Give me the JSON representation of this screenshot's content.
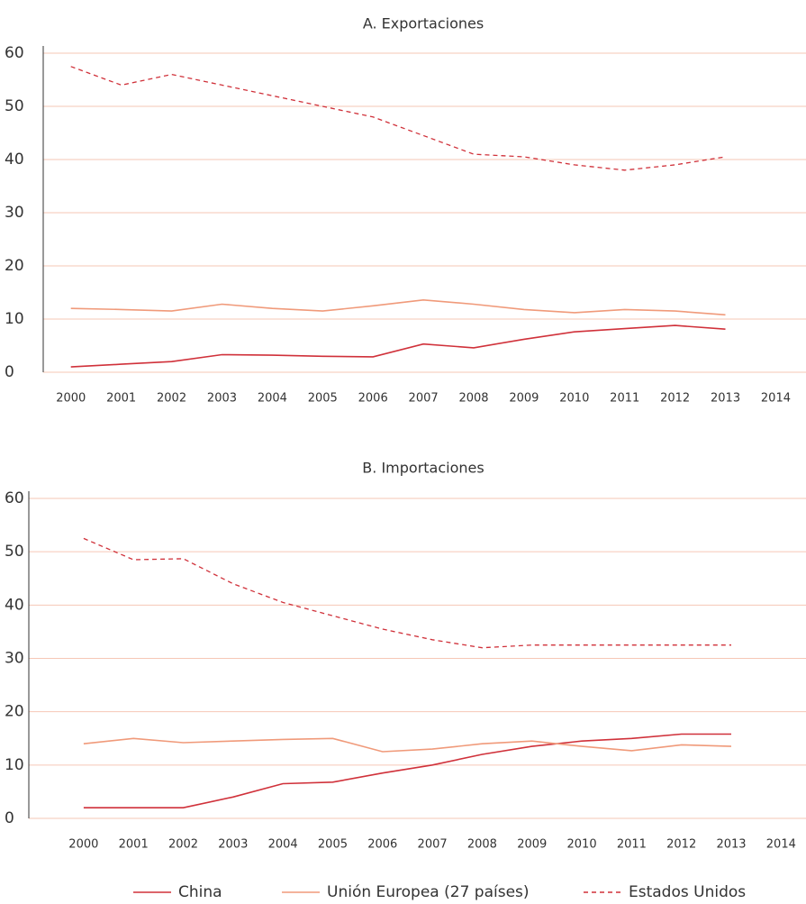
{
  "chart_data": [
    {
      "type": "line",
      "title": "A. Exportaciones",
      "x": [
        2000,
        2001,
        2002,
        2003,
        2004,
        2005,
        2006,
        2007,
        2008,
        2009,
        2010,
        2011,
        2012,
        2013
      ],
      "xlim": [
        1999.45,
        2014.6
      ],
      "xticks": [
        2000,
        2001,
        2002,
        2003,
        2004,
        2005,
        2006,
        2007,
        2008,
        2009,
        2010,
        2011,
        2012,
        2013,
        2014
      ],
      "ylim": [
        0,
        60
      ],
      "yticks": [
        0,
        10,
        20,
        30,
        40,
        50,
        60
      ],
      "grid": true,
      "series": [
        {
          "name": "China",
          "color": "#d0313a",
          "style": "solid",
          "values": [
            1,
            1.5,
            2,
            3.3,
            3.2,
            3,
            2.9,
            5.3,
            4.6,
            6.2,
            7.6,
            8.2,
            8.8,
            8.1
          ]
        },
        {
          "name": "Unión Europea (27 países)",
          "color": "#f09a7a",
          "style": "solid",
          "values": [
            12,
            11.8,
            11.5,
            12.8,
            12,
            11.5,
            12.5,
            13.6,
            12.8,
            11.8,
            11.2,
            11.8,
            11.5,
            10.8
          ]
        },
        {
          "name": "Estados Unidos",
          "color": "#d0313a",
          "style": "dashed",
          "values": [
            57.5,
            54,
            56,
            54,
            52,
            50,
            48,
            44.5,
            41,
            40.5,
            39,
            38,
            39,
            40.5
          ]
        }
      ]
    },
    {
      "type": "line",
      "title": "B. Importaciones",
      "x": [
        2000,
        2001,
        2002,
        2003,
        2004,
        2005,
        2006,
        2007,
        2008,
        2009,
        2010,
        2011,
        2012,
        2013
      ],
      "xlim": [
        1998.9,
        2014.5
      ],
      "xticks": [
        2000,
        2001,
        2002,
        2003,
        2004,
        2005,
        2006,
        2007,
        2008,
        2009,
        2010,
        2011,
        2012,
        2013,
        2014
      ],
      "ylim": [
        0,
        60
      ],
      "yticks": [
        0,
        10,
        20,
        30,
        40,
        50,
        60
      ],
      "grid": true,
      "series": [
        {
          "name": "China",
          "color": "#d0313a",
          "style": "solid",
          "values": [
            2,
            2,
            2,
            4,
            6.5,
            6.8,
            8.5,
            10,
            12,
            13.5,
            14.5,
            15,
            15.8,
            15.8
          ]
        },
        {
          "name": "Unión Europea (27 países)",
          "color": "#f09a7a",
          "style": "solid",
          "values": [
            14,
            15,
            14.2,
            14.5,
            14.8,
            15,
            12.5,
            13,
            14,
            14.5,
            13.5,
            12.7,
            13.8,
            13.5
          ]
        },
        {
          "name": "Estados Unidos",
          "color": "#d0313a",
          "style": "dashed",
          "values": [
            52.5,
            48.5,
            48.7,
            44,
            40.5,
            38,
            35.5,
            33.5,
            32,
            32.5,
            32.5,
            32.5,
            32.5,
            32.5
          ]
        }
      ]
    }
  ]
}
